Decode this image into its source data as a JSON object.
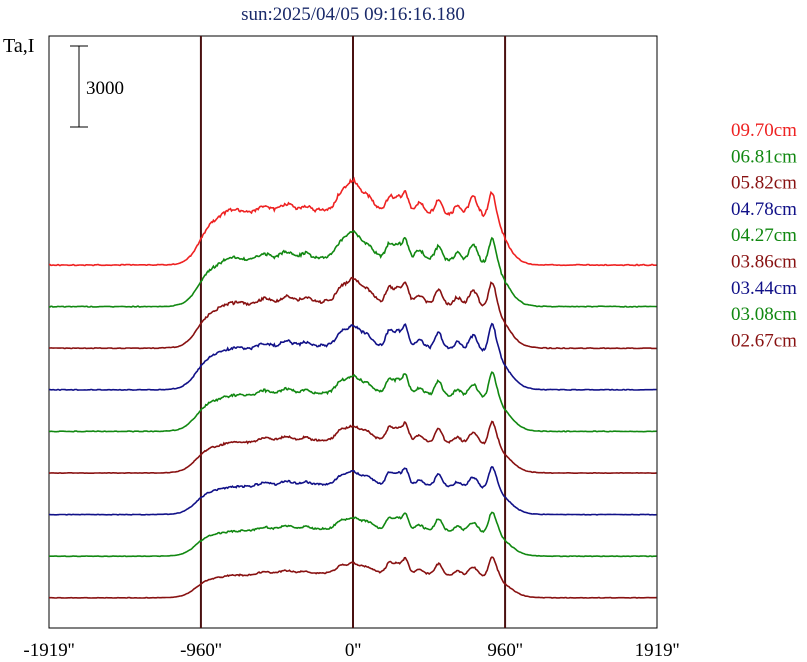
{
  "chart_data": {
    "type": "line",
    "title": "sun:2025/04/05 09:16:16.180",
    "ylabel": "Ta,I",
    "scale_bar_label": "3000",
    "scale_bar_value": 3000,
    "x_tick_labels": [
      "-1919''",
      "-960''",
      "0''",
      "960''",
      "1919''"
    ],
    "x_ticks": [
      -1919,
      -960,
      0,
      960,
      1919
    ],
    "xlim": [
      -1919,
      1919
    ],
    "vertical_lines": [
      -960,
      0,
      960
    ],
    "vertical_line_color": "#4a1010",
    "legend_position": "right",
    "series": [
      {
        "name": "09.70cm",
        "color": "#ee2222",
        "baseline": 0,
        "scale": 1.0,
        "peak_shape": 0.35,
        "limb_shape": 0.3
      },
      {
        "name": "06.81cm",
        "color": "#118811",
        "baseline": 2000,
        "scale": 0.9,
        "peak_shape": 0.45,
        "limb_shape": 0.55
      },
      {
        "name": "05.82cm",
        "color": "#881111",
        "baseline": 4000,
        "scale": 0.85,
        "peak_shape": 0.55,
        "limb_shape": 0.7
      },
      {
        "name": "04.78cm",
        "color": "#111188",
        "baseline": 6000,
        "scale": 0.8,
        "peak_shape": 0.7,
        "limb_shape": 0.85
      },
      {
        "name": "04.27cm",
        "color": "#118811",
        "baseline": 8000,
        "scale": 0.7,
        "peak_shape": 0.75,
        "limb_shape": 0.95
      },
      {
        "name": "03.86cm",
        "color": "#881111",
        "baseline": 10000,
        "scale": 0.6,
        "peak_shape": 0.8,
        "limb_shape": 1.0
      },
      {
        "name": "03.44cm",
        "color": "#111188",
        "baseline": 12000,
        "scale": 0.55,
        "peak_shape": 0.85,
        "limb_shape": 1.0
      },
      {
        "name": "03.08cm",
        "color": "#118811",
        "baseline": 14000,
        "scale": 0.5,
        "peak_shape": 0.9,
        "limb_shape": 1.0
      },
      {
        "name": "02.67cm",
        "color": "#881111",
        "baseline": 16000,
        "scale": 0.45,
        "peak_shape": 0.95,
        "limb_shape": 1.0
      }
    ]
  }
}
